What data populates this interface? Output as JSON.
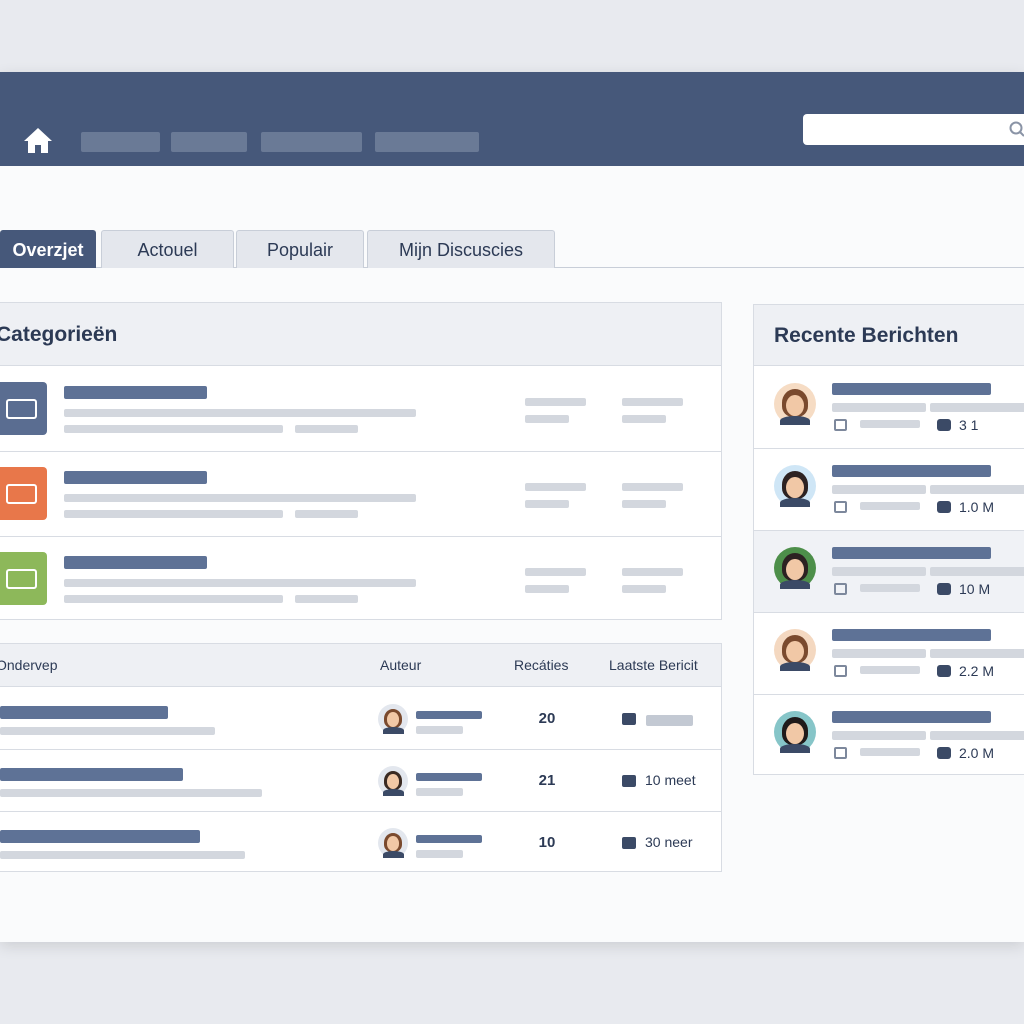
{
  "nav": {
    "tabs": [
      "Overzjet",
      "Actouel",
      "Populair",
      "Mijn Discuscies"
    ]
  },
  "categories": {
    "title": "Categorieën"
  },
  "topics": {
    "headers": [
      "Ondervep",
      "Auteur",
      "Recáties",
      "Laatste Bericit"
    ],
    "rows": [
      {
        "replies": "20"
      },
      {
        "replies": "21",
        "last": "10 meet"
      },
      {
        "replies": "10",
        "last": "30 neer"
      }
    ]
  },
  "recent": {
    "title": "Recente Berichten",
    "items": [
      "3 1",
      "1.0 M",
      "10 M",
      "2.2 M",
      "2.0 M"
    ]
  }
}
